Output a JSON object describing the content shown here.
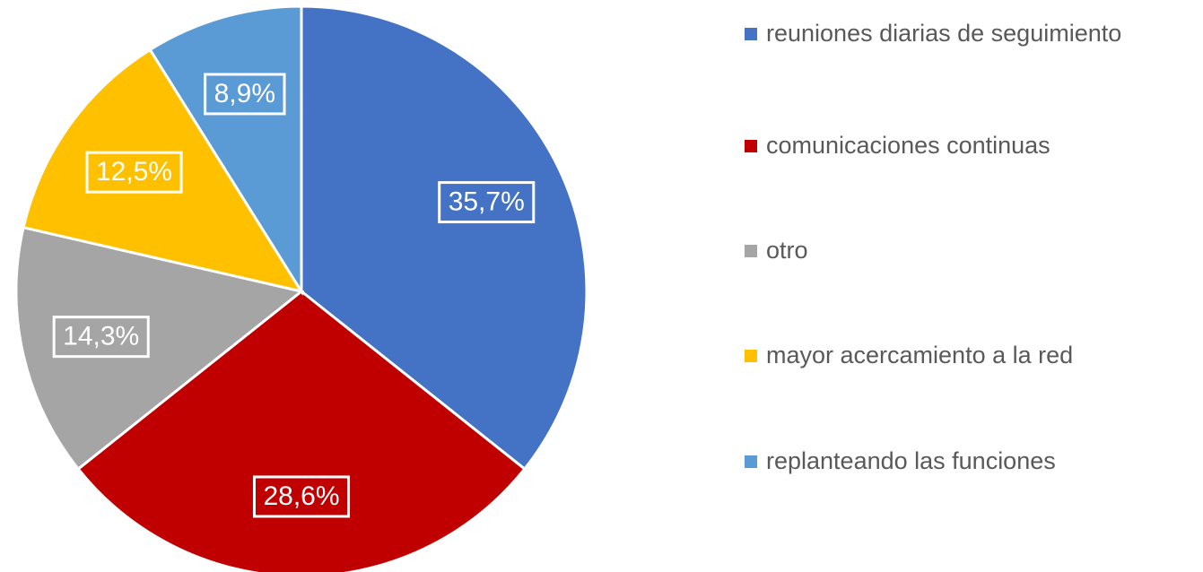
{
  "chart_data": {
    "type": "pie",
    "categories": [
      "reuniones diarias de seguimiento",
      "comunicaciones continuas",
      "otro",
      "mayor acercamiento a la red",
      "replanteando las funciones"
    ],
    "values": [
      35.7,
      28.6,
      14.3,
      12.5,
      8.9
    ],
    "value_labels": [
      "35,7%",
      "28,6%",
      "14,3%",
      "12,5%",
      "8,9%"
    ],
    "colors": [
      "#4472c4",
      "#c00000",
      "#a5a5a5",
      "#ffc000",
      "#5b9bd5"
    ],
    "legend": "right"
  }
}
